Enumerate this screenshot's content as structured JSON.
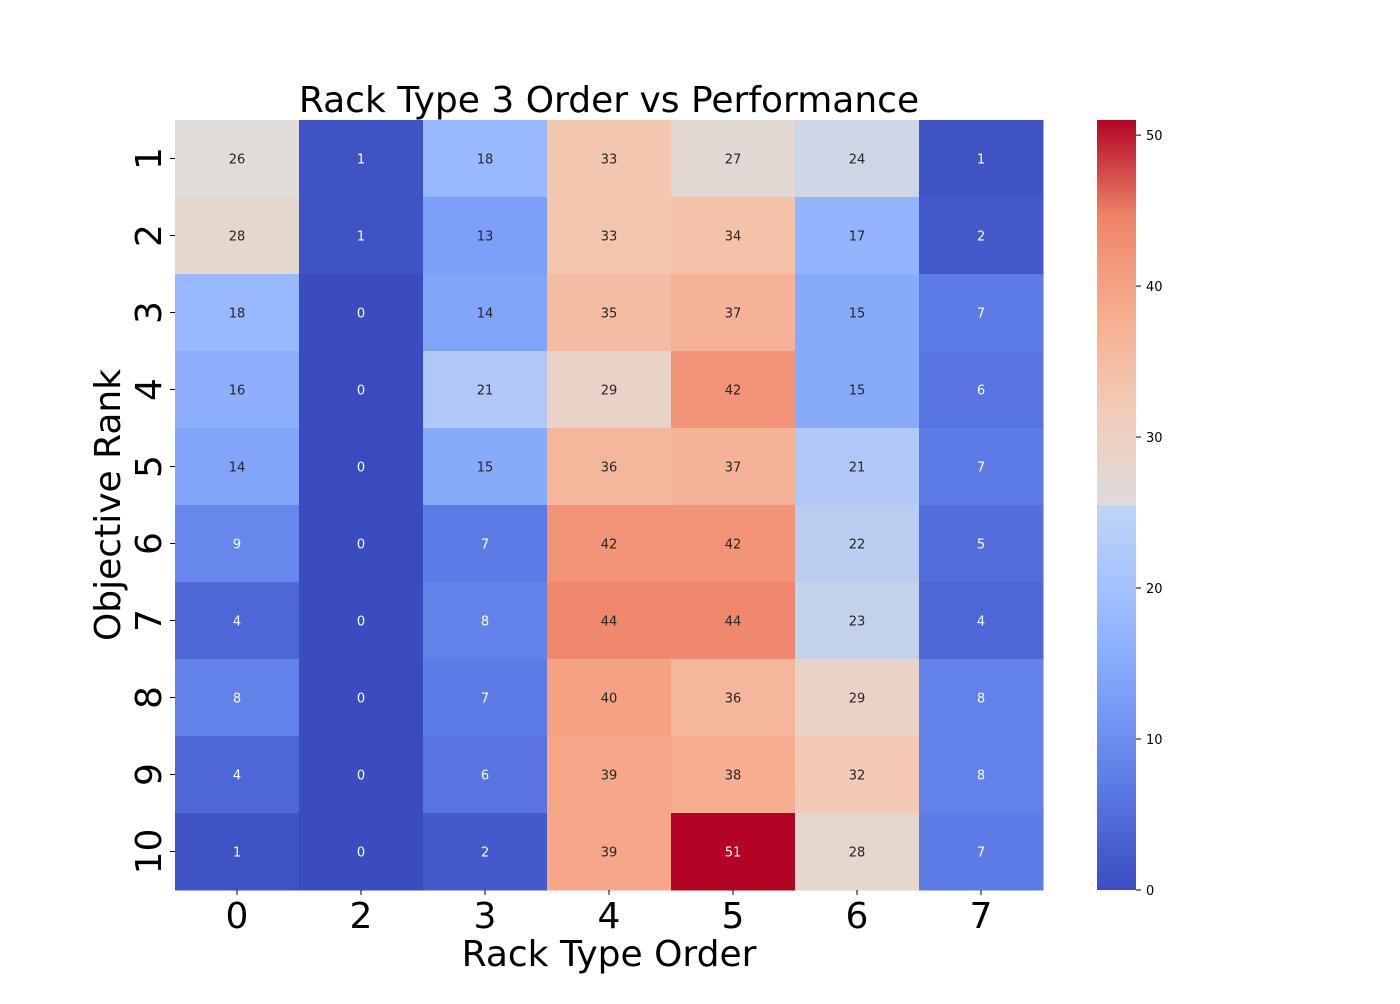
{
  "chart_data": {
    "type": "heatmap",
    "title": "Rack Type 3 Order vs Performance",
    "xlabel": "Rack Type Order",
    "ylabel": "Objective Rank",
    "x_categories": [
      "0",
      "2",
      "3",
      "4",
      "5",
      "6",
      "7"
    ],
    "y_categories": [
      "1",
      "2",
      "3",
      "4",
      "5",
      "6",
      "7",
      "8",
      "9",
      "10"
    ],
    "values": [
      [
        26,
        1,
        18,
        33,
        27,
        24,
        1
      ],
      [
        28,
        1,
        13,
        33,
        34,
        17,
        2
      ],
      [
        18,
        0,
        14,
        35,
        37,
        15,
        7
      ],
      [
        16,
        0,
        21,
        29,
        42,
        15,
        6
      ],
      [
        14,
        0,
        15,
        36,
        37,
        21,
        7
      ],
      [
        9,
        0,
        7,
        42,
        42,
        22,
        5
      ],
      [
        4,
        0,
        8,
        44,
        44,
        23,
        4
      ],
      [
        8,
        0,
        7,
        40,
        36,
        29,
        8
      ],
      [
        4,
        0,
        6,
        39,
        38,
        32,
        8
      ],
      [
        1,
        0,
        2,
        39,
        51,
        28,
        7
      ]
    ],
    "colormap": "coolwarm",
    "vmin": 0,
    "vmax": 51,
    "colorbar_ticks": [
      "0",
      "10",
      "20",
      "30",
      "40",
      "50"
    ],
    "annotations": true
  }
}
